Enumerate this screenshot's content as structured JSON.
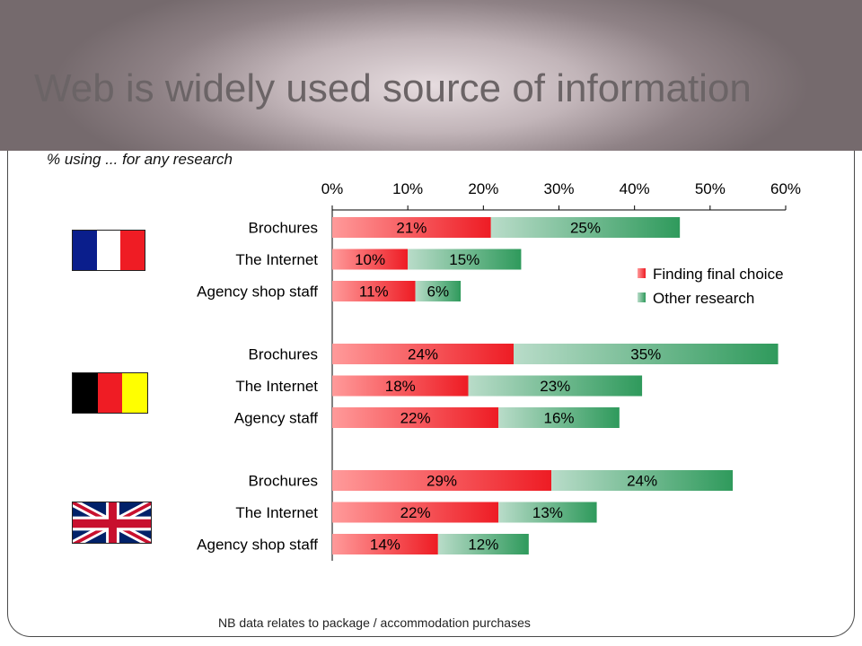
{
  "slide": {
    "title": "Web is widely used source of information",
    "subtitle": "% using ... for any research",
    "footnote": "NB data relates to package / accommodation purchases"
  },
  "flags": [
    {
      "icon": "france-flag-icon"
    },
    {
      "icon": "belgium-flag-icon"
    },
    {
      "icon": "uk-flag-icon"
    }
  ],
  "colors": {
    "finding_dark": "#ee1c24",
    "finding_light": "#ff9a9a",
    "other_light": "#b9dcc9",
    "other_dark": "#2f9a5c"
  },
  "chart_data": {
    "type": "bar",
    "orientation": "horizontal",
    "stacked": true,
    "title": "",
    "xlim": [
      0,
      60
    ],
    "x_ticks": [
      "0%",
      "10%",
      "20%",
      "30%",
      "40%",
      "50%",
      "60%"
    ],
    "groups": [
      {
        "group": "France",
        "categories": [
          "Brochures",
          "The Internet",
          "Agency shop staff"
        ],
        "series": [
          {
            "name": "Finding final choice",
            "values": [
              21,
              10,
              11
            ]
          },
          {
            "name": "Other research",
            "values": [
              25,
              15,
              6
            ]
          }
        ]
      },
      {
        "group": "Belgium",
        "categories": [
          "Brochures",
          "The Internet",
          "Agency staff"
        ],
        "series": [
          {
            "name": "Finding final choice",
            "values": [
              24,
              18,
              22
            ]
          },
          {
            "name": "Other research",
            "values": [
              35,
              23,
              16
            ]
          }
        ]
      },
      {
        "group": "UK",
        "categories": [
          "Brochures",
          "The Internet",
          "Agency shop staff"
        ],
        "series": [
          {
            "name": "Finding final choice",
            "values": [
              29,
              22,
              14
            ]
          },
          {
            "name": "Other research",
            "values": [
              24,
              13,
              12
            ]
          }
        ]
      }
    ],
    "legend": {
      "position": "right",
      "entries": [
        "Finding final choice",
        "Other research"
      ]
    },
    "grid": false
  }
}
